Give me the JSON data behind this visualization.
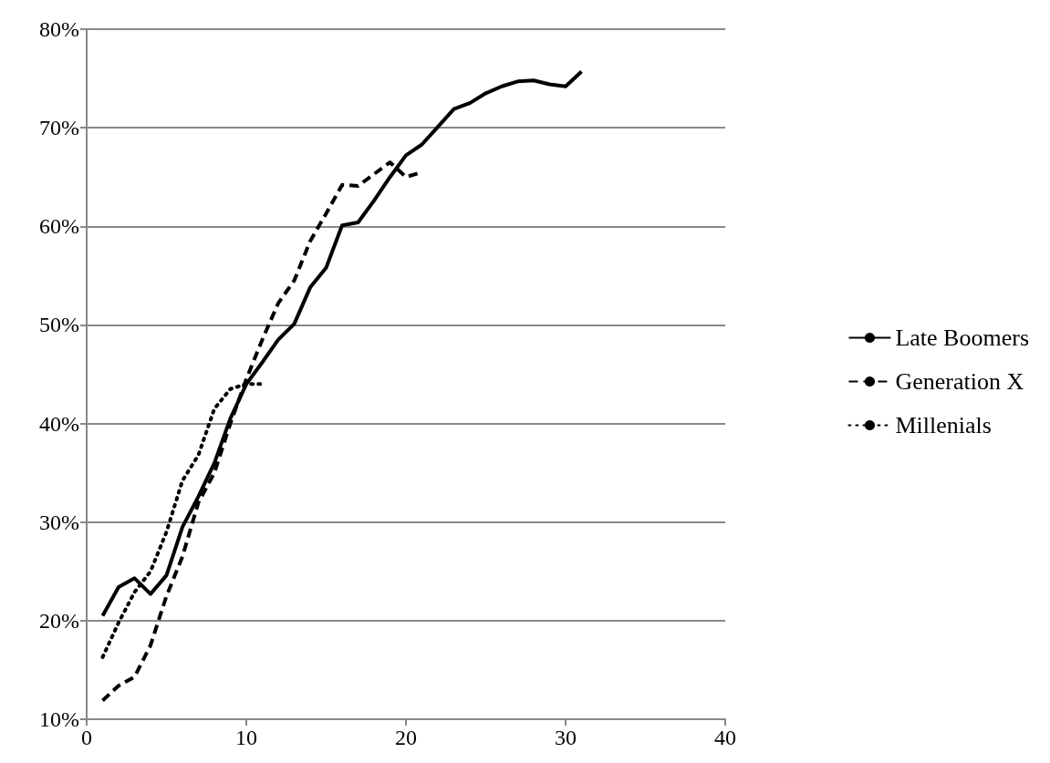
{
  "chart_data": {
    "type": "line",
    "x": [
      1,
      2,
      3,
      4,
      5,
      6,
      7,
      8,
      9,
      10,
      11,
      12,
      13,
      14,
      15,
      16,
      17,
      18,
      19,
      20,
      21,
      22,
      23,
      24,
      25,
      26,
      27,
      28,
      29,
      30,
      31
    ],
    "series": [
      {
        "name": "Late Boomers",
        "color": "#000000",
        "line_style": "solid",
        "values": [
          20.5,
          23.4,
          24.3,
          22.7,
          24.6,
          29.5,
          32.6,
          36,
          40.5,
          44,
          46.2,
          48.5,
          50.1,
          53.8,
          55.8,
          60.1,
          60.4,
          62.6,
          65,
          67.2,
          68.3,
          70.1,
          71.9,
          72.5,
          73.5,
          74.2,
          74.7,
          74.8,
          74.4,
          74.2,
          75.7
        ]
      },
      {
        "name": "Generation X",
        "color": "#000000",
        "line_style": "dashed",
        "x": [
          1,
          2,
          3,
          4,
          5,
          6,
          7,
          8,
          9,
          10,
          11,
          12,
          13,
          14,
          15,
          16,
          17,
          18,
          19,
          20,
          21
        ],
        "values": [
          11.9,
          13.4,
          14.3,
          17.5,
          22.5,
          26.5,
          32,
          35,
          40,
          44.5,
          48.5,
          52.2,
          54.5,
          58.5,
          61.3,
          64.2,
          64.1,
          65.3,
          66.5,
          65,
          65.5
        ]
      },
      {
        "name": "Millenials",
        "color": "#000000",
        "line_style": "dotted",
        "x": [
          1,
          2,
          3,
          4,
          5,
          6,
          7,
          8,
          9,
          10,
          11
        ],
        "values": [
          16.3,
          19.8,
          22.9,
          25,
          29,
          34.2,
          36.8,
          41.5,
          43.5,
          44,
          44
        ]
      }
    ],
    "xlim": [
      0,
      40
    ],
    "xticks": [
      0,
      10,
      20,
      30,
      40
    ],
    "ylim": [
      10,
      80
    ],
    "yticks": [
      {
        "value": 10,
        "label": "10%"
      },
      {
        "value": 20,
        "label": "20%"
      },
      {
        "value": 30,
        "label": "30%"
      },
      {
        "value": 40,
        "label": "40%"
      },
      {
        "value": 50,
        "label": "50%"
      },
      {
        "value": 60,
        "label": "60%"
      },
      {
        "value": 70,
        "label": "70%"
      },
      {
        "value": 80,
        "label": "80%"
      }
    ],
    "grid": "y",
    "legend": "right",
    "marker": "none"
  }
}
